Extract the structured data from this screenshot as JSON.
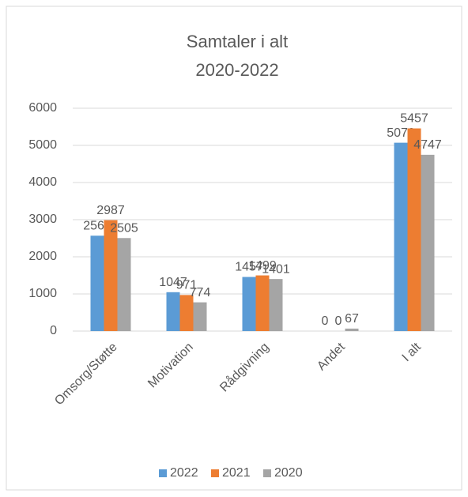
{
  "chart_data": {
    "type": "bar",
    "title": [
      "Samtaler i alt",
      "2020-2022"
    ],
    "categories": [
      "Omsorg/Støtte",
      "Motivation",
      "Rådgivning",
      "Andet",
      "I alt"
    ],
    "series": [
      {
        "name": "2022",
        "color": "#5b9bd5",
        "values": [
          2568,
          1047,
          1457,
          0,
          5072
        ]
      },
      {
        "name": "2021",
        "color": "#ed7d31",
        "values": [
          2987,
          971,
          1499,
          0,
          5457
        ]
      },
      {
        "name": "2020",
        "color": "#a5a5a5",
        "values": [
          2505,
          774,
          1401,
          67,
          4747
        ]
      }
    ],
    "ylim": [
      0,
      6000
    ],
    "yticks": [
      0,
      1000,
      2000,
      3000,
      4000,
      5000,
      6000
    ],
    "grid": true,
    "legend": "bottom"
  }
}
